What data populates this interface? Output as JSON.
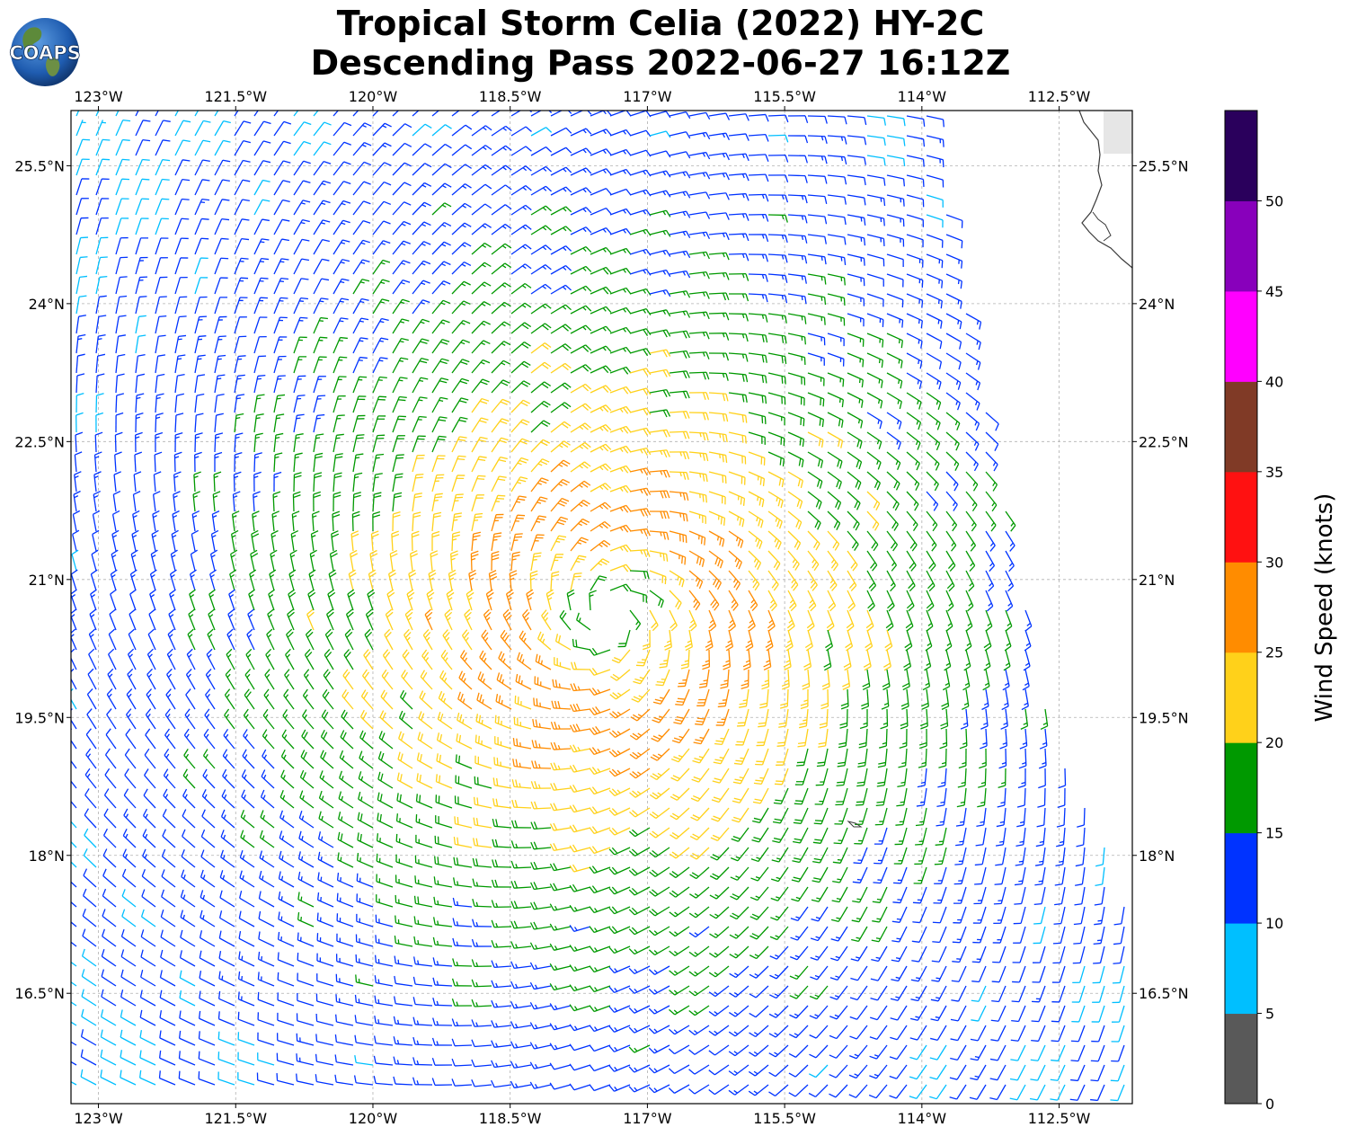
{
  "title": {
    "line1": "Tropical Storm Celia (2022) HY-2C",
    "line2": "Descending Pass 2022-06-27 16:12Z"
  },
  "logo": {
    "text": "COAPS"
  },
  "axes": {
    "lon_labels": [
      "123°W",
      "121.5°W",
      "120°W",
      "118.5°W",
      "117°W",
      "115.5°W",
      "114°W",
      "112.5°W"
    ],
    "lat_labels": [
      "25.5°N",
      "24°N",
      "22.5°N",
      "21°N",
      "19.5°N",
      "18°N",
      "16.5°N"
    ],
    "lon_values": [
      -123,
      -121.5,
      -120,
      -118.5,
      -117,
      -115.5,
      -114,
      -112.5
    ],
    "lat_values": [
      25.5,
      24,
      22.5,
      21,
      19.5,
      18,
      16.5
    ],
    "lon_range": [
      -123.3,
      -111.7
    ],
    "lat_range": [
      15.3,
      26.1
    ],
    "grid": true
  },
  "colorbar": {
    "label": "Wind Speed (knots)",
    "tick_labels": [
      "0",
      "5",
      "10",
      "15",
      "20",
      "25",
      "30",
      "35",
      "40",
      "45",
      "50"
    ],
    "bins": [
      {
        "min": 0,
        "max": 5,
        "color": "#595959"
      },
      {
        "min": 5,
        "max": 10,
        "color": "#00bfff"
      },
      {
        "min": 10,
        "max": 15,
        "color": "#0033ff"
      },
      {
        "min": 15,
        "max": 20,
        "color": "#009900"
      },
      {
        "min": 20,
        "max": 25,
        "color": "#ffd11a"
      },
      {
        "min": 25,
        "max": 30,
        "color": "#ff8c00"
      },
      {
        "min": 30,
        "max": 35,
        "color": "#ff1111"
      },
      {
        "min": 35,
        "max": 40,
        "color": "#803a26"
      },
      {
        "min": 40,
        "max": 45,
        "color": "#ff00ff"
      },
      {
        "min": 45,
        "max": 50,
        "color": "#8800bb"
      },
      {
        "min": 50,
        "max": 55,
        "color": "#2a005c"
      }
    ]
  },
  "storm": {
    "name": "Tropical Storm Celia",
    "center_lon": -117.4,
    "center_lat": 20.6,
    "max_wind_kt": 28
  },
  "swath_edge_east": [
    [
      -113.9,
      26.1
    ],
    [
      -112.6,
      19.6
    ],
    [
      -111.7,
      17.5
    ]
  ]
}
